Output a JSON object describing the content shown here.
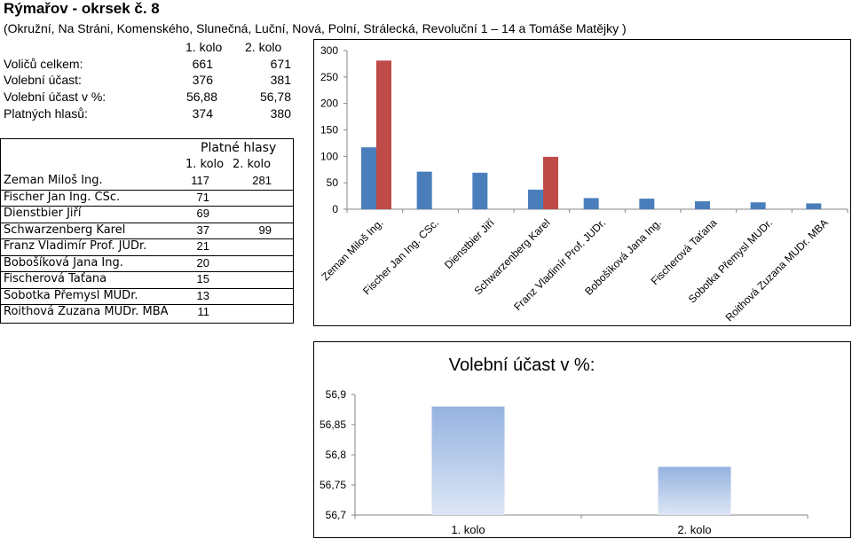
{
  "header": {
    "title": "Rýmařov - okrsek č. 8",
    "subtitle": "(Okružní, Na Stráni, Komenského, Slunečná, Luční, Nová, Polní, Strálecká, Revoluční 1 – 14 a Tomáše Matějky )"
  },
  "summary": {
    "col1": "1. kolo",
    "col2": "2. kolo",
    "rows": [
      {
        "label": "Voličů celkem:",
        "k1": "661",
        "k2": "671"
      },
      {
        "label": "Volební účast:",
        "k1": "376",
        "k2": "381"
      },
      {
        "label": "Volební účast v %:",
        "k1": "56,88",
        "k2": "56,78"
      },
      {
        "label": "Platných hlasů:",
        "k1": "374",
        "k2": "380"
      }
    ]
  },
  "candidates_table": {
    "heading": "Platné hlasy",
    "col1": "1. kolo",
    "col2": "2. kolo",
    "rows": [
      {
        "name": "Zeman Miloš Ing.",
        "k1": "117",
        "k2": "281"
      },
      {
        "name": "Fischer Jan Ing. CSc.",
        "k1": "71",
        "k2": ""
      },
      {
        "name": "Dienstbier Jiří",
        "k1": "69",
        "k2": ""
      },
      {
        "name": "Schwarzenberg Karel",
        "k1": "37",
        "k2": "99"
      },
      {
        "name": "Franz Vladimír Prof. JUDr.",
        "k1": "21",
        "k2": ""
      },
      {
        "name": "Bobošíková Jana Ing.",
        "k1": "20",
        "k2": ""
      },
      {
        "name": "Fischerová Taťana",
        "k1": "15",
        "k2": ""
      },
      {
        "name": "Sobotka Přemysl MUDr.",
        "k1": "13",
        "k2": ""
      },
      {
        "name": "Roithová Zuzana MUDr. MBA",
        "k1": "11",
        "k2": ""
      }
    ]
  },
  "chart_data": [
    {
      "type": "bar",
      "title": "",
      "categories": [
        "Zeman Miloš Ing.",
        "Fischer Jan Ing. CSc.",
        "Dienstbier Jiří",
        "Schwarzenberg Karel",
        "Franz Vladimír Prof. JUDr.",
        "Bobošíková Jana Ing.",
        "Fischerová Taťana",
        "Sobotka Přemysl MUDr.",
        "Roithová Zuzana MUDr. MBA"
      ],
      "series": [
        {
          "values": [
            117,
            71,
            69,
            37,
            21,
            20,
            15,
            13,
            11
          ],
          "color": "#4a7ebb"
        },
        {
          "values": [
            281,
            null,
            null,
            99,
            null,
            null,
            null,
            null,
            null
          ],
          "color": "#be4b48"
        }
      ],
      "ylim": [
        0,
        300
      ],
      "yticks": [
        "0",
        "50",
        "100",
        "150",
        "200",
        "250",
        "300"
      ],
      "grid": false,
      "legend": "none"
    },
    {
      "type": "bar",
      "title": "Volební účast v %:",
      "categories": [
        "1. kolo",
        "2. kolo"
      ],
      "values": [
        56.88,
        56.78
      ],
      "ylim": [
        56.7,
        56.9
      ],
      "yticks": [
        "56,7",
        "56,75",
        "56,8",
        "56,85",
        "56,9"
      ],
      "grid": false,
      "legend": "none",
      "color_top": "#95b3e0",
      "color_bottom": "#dce6f5"
    }
  ]
}
